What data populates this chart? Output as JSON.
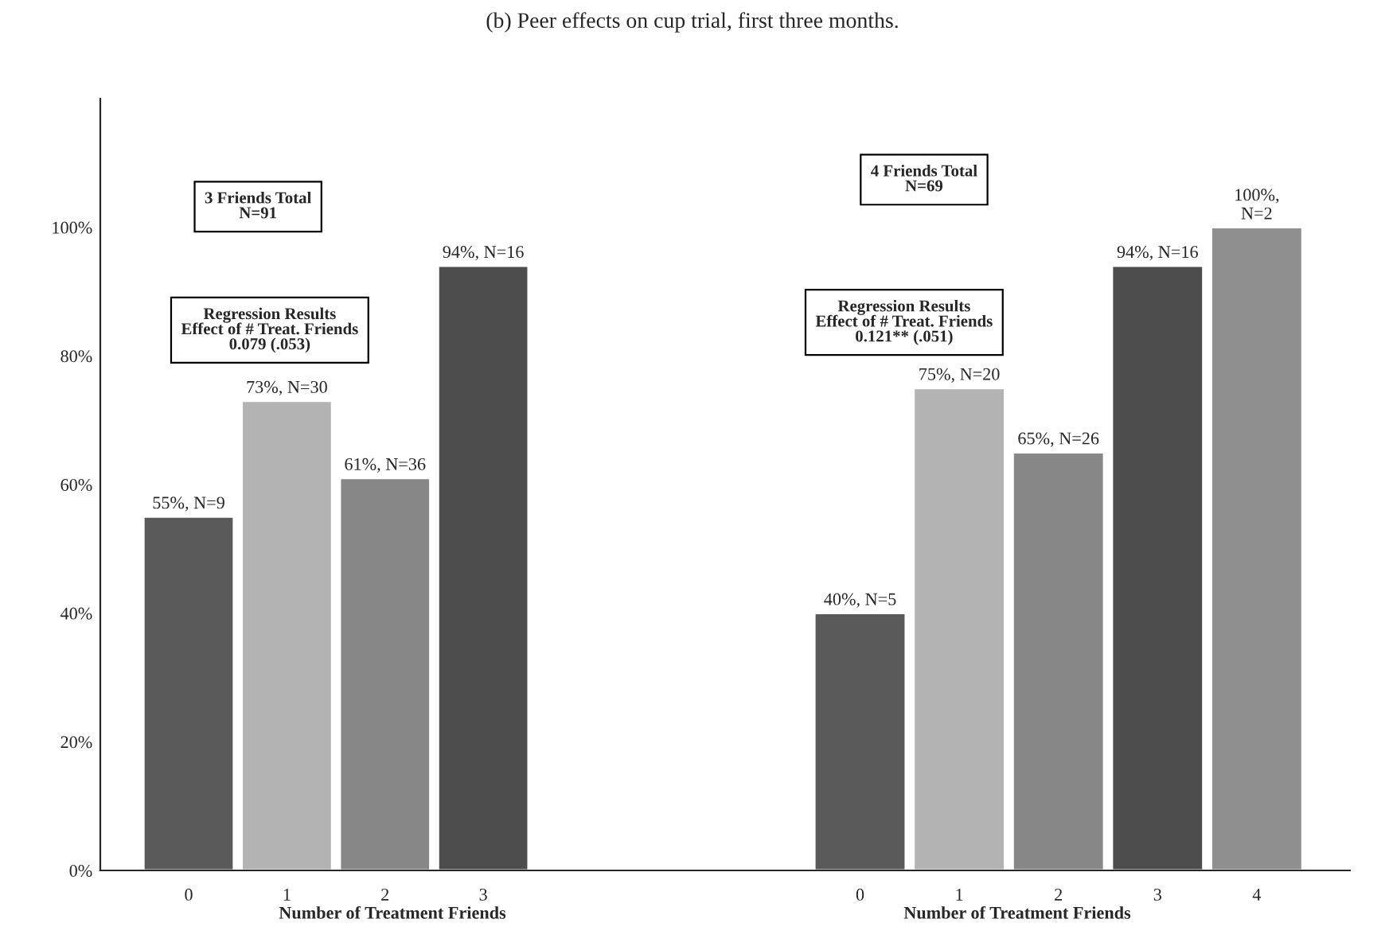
{
  "chart_data": [
    {
      "type": "bar",
      "title": "(b) Peer effects on cup trial, first three months.",
      "categories": [
        "0",
        "1",
        "2",
        "3"
      ],
      "values": [
        55,
        73,
        61,
        94
      ],
      "colors": [
        "#5a5a5a",
        "#b3b3b3",
        "#878787",
        "#4d4d4d"
      ],
      "value_labels": [
        "55%, N=9",
        "73%, N=30",
        "61%, N=36",
        "94%, N=16"
      ],
      "xlabel": "Number of Treatment Friends",
      "ylim": [
        0,
        120
      ],
      "yticks": [
        {
          "value": 0,
          "label": "0%"
        },
        {
          "value": 20,
          "label": "20%"
        },
        {
          "value": 40,
          "label": "40%"
        },
        {
          "value": 60,
          "label": "60%"
        },
        {
          "value": 80,
          "label": "80%"
        },
        {
          "value": 100,
          "label": "100%"
        }
      ],
      "annotations": [
        "3 Friends Total\nN=91",
        "Regression Results\nEffect of # Treat. Friends\n0.079 (.053)"
      ]
    },
    {
      "type": "bar",
      "categories": [
        "0",
        "1",
        "2",
        "3",
        "4"
      ],
      "values": [
        40,
        75,
        65,
        94,
        100
      ],
      "colors": [
        "#5a5a5a",
        "#b3b3b3",
        "#878787",
        "#4d4d4d",
        "#8f8f8f"
      ],
      "value_labels": [
        "40%, N=5",
        "75%, N=20",
        "65%, N=26",
        "94%, N=16",
        "100%,\nN=2"
      ],
      "xlabel": "Number of Treatment Friends",
      "tick_labels": "x",
      "annotations": [
        "4 Friends Total\nN=69",
        "Regression Results\nEffect of # Treat. Friends\n0.121** (.051)"
      ]
    }
  ]
}
